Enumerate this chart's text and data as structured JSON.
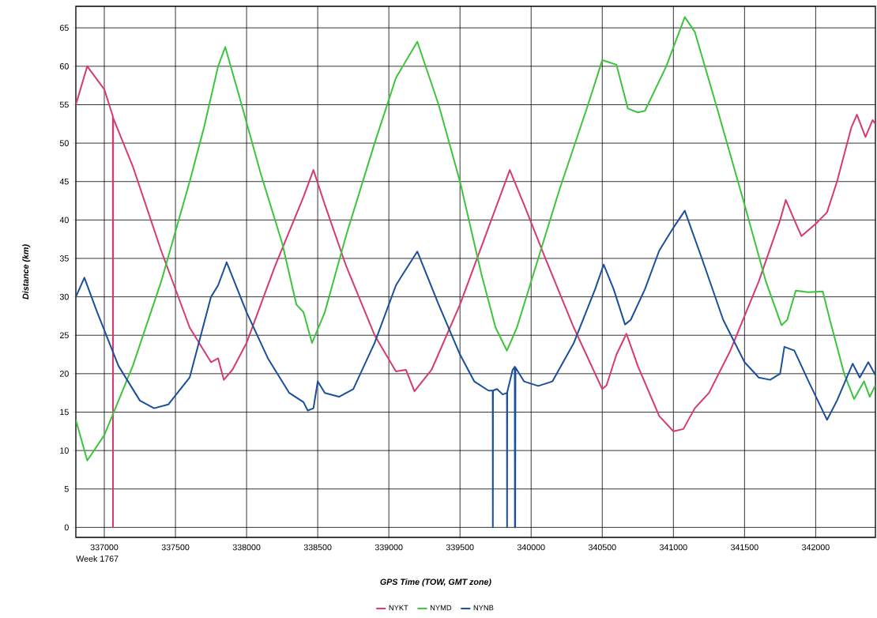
{
  "chart_data": {
    "type": "line",
    "xlabel": "GPS Time (TOW, GMT zone)",
    "ylabel": "Distance (km)",
    "annotations": [
      "Week 1767"
    ],
    "xlim": [
      336800,
      342420
    ],
    "ylim": [
      -1.3,
      67.8
    ],
    "xticks": [
      337000,
      337500,
      338000,
      338500,
      339000,
      339500,
      340000,
      340500,
      341000,
      341500,
      342000
    ],
    "yticks": [
      0,
      5,
      10,
      15,
      20,
      25,
      30,
      35,
      40,
      45,
      50,
      55,
      60,
      65
    ],
    "grid": true,
    "legend": "bottom",
    "marker": "none",
    "line_style": "solid",
    "series": [
      {
        "name": "NYKT",
        "color": "#d63a6e",
        "x": [
          336800,
          336880,
          337000,
          337060,
          337061,
          337062,
          337200,
          337400,
          337600,
          337750,
          337800,
          337840,
          337900,
          338000,
          338200,
          338400,
          338470,
          338550,
          338700,
          338900,
          339050,
          339120,
          339180,
          339300,
          339500,
          339700,
          339850,
          339950,
          340100,
          340300,
          340500,
          340530,
          340600,
          340670,
          340750,
          340900,
          341000,
          341070,
          341150,
          341250,
          341400,
          341600,
          341750,
          341790,
          341850,
          341900,
          342000,
          342080,
          342150,
          342250,
          342290,
          342350,
          342400,
          342420
        ],
        "values": [
          55,
          60,
          57,
          53.5,
          0,
          53.3,
          47,
          36,
          26,
          21.5,
          22,
          19.2,
          20.5,
          24,
          34,
          43,
          46.5,
          42,
          34,
          25,
          20.3,
          20.5,
          17.7,
          20.5,
          29,
          39,
          46.5,
          42,
          35,
          26,
          18,
          18.5,
          22.5,
          25.2,
          21,
          14.5,
          12.5,
          12.8,
          15.5,
          17.5,
          23,
          32,
          40,
          42.6,
          40,
          37.9,
          39.5,
          41,
          45,
          52,
          53.7,
          50.8,
          53,
          52.5
        ]
      },
      {
        "name": "NYMD",
        "color": "#3cc43c",
        "x": [
          336800,
          336880,
          337000,
          337200,
          337400,
          337600,
          337700,
          337800,
          337850,
          337950,
          338100,
          338250,
          338350,
          338400,
          338460,
          338550,
          338700,
          338900,
          339050,
          339200,
          339350,
          339500,
          339650,
          339750,
          339830,
          339900,
          340050,
          340200,
          340400,
          340500,
          340550,
          340600,
          340680,
          340750,
          340800,
          340950,
          341080,
          341150,
          341300,
          341500,
          341650,
          341760,
          341800,
          341860,
          341950,
          342050,
          342100,
          342200,
          342270,
          342340,
          342380,
          342420
        ],
        "values": [
          14,
          8.7,
          12,
          21,
          32,
          45,
          52,
          60,
          62.5,
          56,
          46,
          37,
          29,
          28,
          24,
          28,
          38,
          50,
          58.5,
          63.2,
          55,
          45,
          33,
          26,
          23,
          26,
          35,
          44,
          55,
          60.8,
          60.5,
          60.2,
          54.5,
          54,
          54.2,
          60,
          66.4,
          64.5,
          55,
          42,
          32,
          26.3,
          27,
          30.8,
          30.6,
          30.7,
          27,
          20,
          16.7,
          19,
          17,
          18.5
        ]
      },
      {
        "name": "NYNB",
        "color": "#1a4f9c",
        "x": [
          336800,
          336860,
          336950,
          337100,
          337250,
          337350,
          337450,
          337600,
          337750,
          337800,
          337860,
          338000,
          338150,
          338300,
          338400,
          338430,
          338470,
          338500,
          338550,
          338650,
          338750,
          338900,
          339050,
          339100,
          339200,
          339350,
          339500,
          339600,
          339700,
          339730,
          339731,
          339732,
          339760,
          339800,
          339830,
          339831,
          339832,
          339870,
          339885,
          339886,
          339888,
          339890,
          339950,
          340050,
          340150,
          340300,
          340450,
          340510,
          340580,
          340660,
          340700,
          340800,
          340900,
          341000,
          341080,
          341200,
          341350,
          341500,
          341600,
          341680,
          341750,
          341780,
          341850,
          341950,
          342080,
          342150,
          342260,
          342310,
          342370,
          342420
        ],
        "values": [
          30,
          32.5,
          28,
          21,
          16.5,
          15.5,
          16,
          19.5,
          30,
          31.5,
          34.5,
          28,
          22,
          17.5,
          16.3,
          15.2,
          15.5,
          19,
          17.5,
          17,
          18,
          24,
          31.5,
          33,
          35.9,
          29,
          22.5,
          19,
          17.8,
          17.8,
          0,
          17.8,
          18,
          17.3,
          17.5,
          0,
          17.6,
          20.5,
          20.9,
          0,
          0,
          20.8,
          19,
          18.4,
          19,
          24,
          31,
          34.2,
          31,
          26.4,
          27,
          31,
          36,
          39,
          41.2,
          35,
          27,
          21.5,
          19.5,
          19.2,
          20,
          23.5,
          23,
          19,
          14,
          16.5,
          21.3,
          19.5,
          21.5,
          19.8
        ]
      }
    ]
  }
}
